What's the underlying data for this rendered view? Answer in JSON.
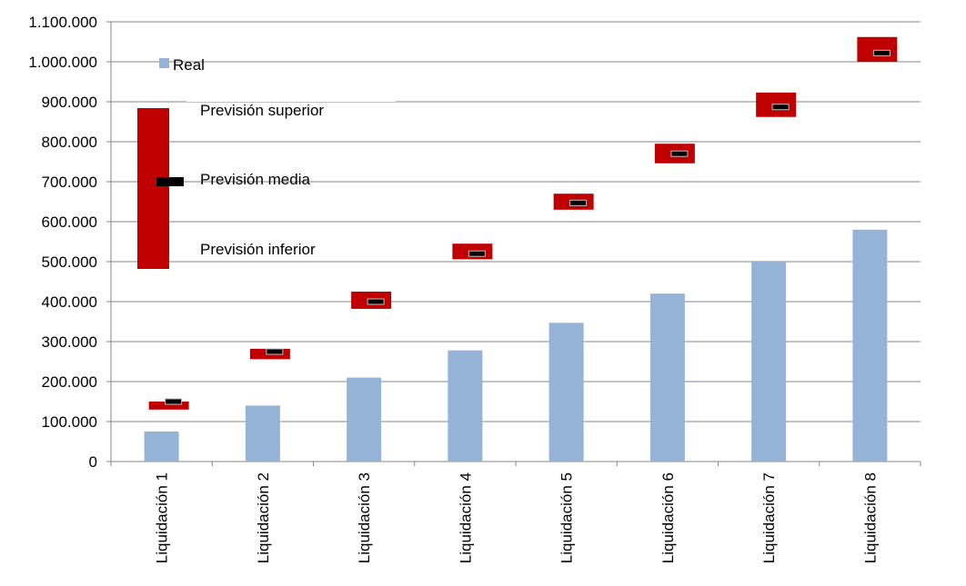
{
  "chart_data": {
    "type": "bar",
    "categories": [
      "Liquidación 1",
      "Liquidación 2",
      "Liquidación 3",
      "Liquidación 4",
      "Liquidación 5",
      "Liquidación 6",
      "Liquidación 7",
      "Liquidación 8"
    ],
    "series": [
      {
        "name": "Real",
        "values": [
          75000,
          140000,
          210000,
          278000,
          347000,
          420000,
          500000,
          580000
        ],
        "color": "#95b3d7"
      }
    ],
    "forecast": {
      "superior": [
        150000,
        282000,
        425000,
        545000,
        670000,
        795000,
        923000,
        1062000
      ],
      "media": [
        150000,
        275000,
        400000,
        520000,
        647000,
        770000,
        887000,
        1022000
      ],
      "inferior": [
        130000,
        256000,
        382000,
        506000,
        630000,
        746000,
        862000,
        1000000
      ],
      "color": "#c00000",
      "media_color": "#000000"
    },
    "ylim": [
      0,
      1100000
    ],
    "yticks": [
      0,
      100000,
      200000,
      300000,
      400000,
      500000,
      600000,
      700000,
      800000,
      900000,
      1000000,
      1100000
    ],
    "ytick_labels": [
      "0",
      "100.000",
      "200.000",
      "300.000",
      "400.000",
      "500.000",
      "600.000",
      "700.000",
      "800.000",
      "900.000",
      "1.000.000",
      "1.100.000"
    ],
    "grid": true,
    "legend": {
      "real_label": "Real",
      "superior_label": "Previsión  superior",
      "media_label": "Previsión  media",
      "inferior_label": "Previsión  inferior"
    }
  }
}
